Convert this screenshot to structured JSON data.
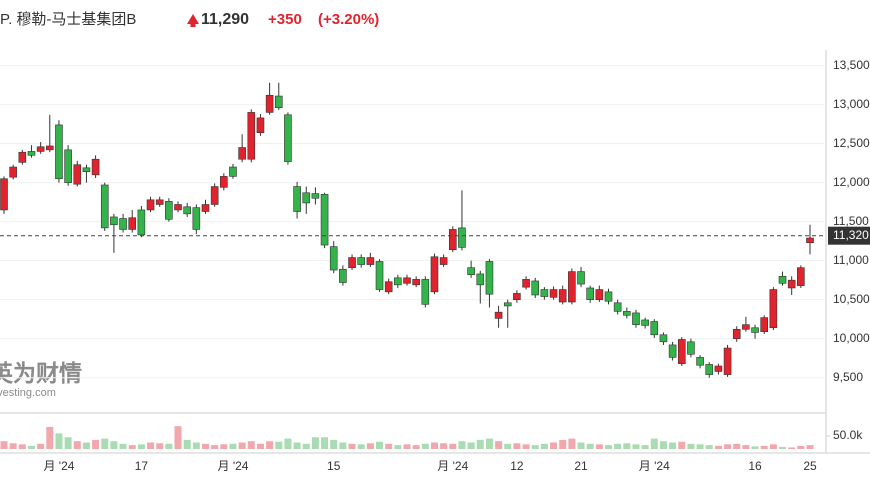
{
  "chart_data": {
    "type": "candlestick",
    "title": "P. 穆勒-马士基集团B",
    "price": "11,290",
    "change": "+350",
    "change_pct": "(+3.20%)",
    "watermark": "英为财情",
    "watermark_sub": "Investing.com",
    "up_color": "#e0242e",
    "down_color": "#33b34a",
    "up_volume_color": "#f2a7ad",
    "down_volume_color": "#a9dcb2",
    "current_price": {
      "value": 11320,
      "label": "11,320"
    },
    "categories": [
      null,
      null,
      null,
      null,
      null,
      null,
      "月 '24",
      null,
      null,
      null,
      null,
      null,
      null,
      null,
      null,
      "17",
      null,
      null,
      null,
      null,
      null,
      null,
      null,
      null,
      null,
      "月 '24",
      null,
      null,
      null,
      null,
      null,
      null,
      null,
      null,
      null,
      null,
      "15",
      null,
      null,
      null,
      null,
      null,
      null,
      null,
      null,
      null,
      null,
      null,
      null,
      "月 '24",
      null,
      null,
      null,
      null,
      null,
      null,
      "12",
      null,
      null,
      null,
      null,
      null,
      null,
      "21",
      null,
      null,
      null,
      null,
      null,
      null,
      null,
      "月 '24",
      null,
      null,
      null,
      null,
      null,
      null,
      null,
      null,
      null,
      null,
      "16",
      null,
      null,
      null,
      null,
      null,
      "25"
    ],
    "open": [
      11650,
      12070,
      12260,
      12400,
      12400,
      12420,
      12740,
      12420,
      11980,
      12190,
      12100,
      11970,
      11560,
      11540,
      11400,
      11650,
      11650,
      11720,
      11760,
      11650,
      11690,
      11680,
      11630,
      11720,
      11940,
      12200,
      12300,
      12300,
      12640,
      12900,
      13110,
      12870,
      11950,
      11870,
      11860,
      11850,
      11180,
      10890,
      10910,
      11040,
      10950,
      10990,
      10600,
      10780,
      10710,
      10690,
      10760,
      10600,
      10950,
      11140,
      11420,
      10910,
      10830,
      10990,
      10260,
      10460,
      10500,
      10660,
      10740,
      10630,
      10530,
      10470,
      10470,
      10860,
      10650,
      10500,
      10600,
      10460,
      10350,
      10330,
      10240,
      10220,
      10050,
      9920,
      9680,
      9960,
      9760,
      9670,
      9580,
      9540,
      10000,
      10120,
      10140,
      10090,
      10140,
      10800,
      10650,
      10680,
      11230
    ],
    "high": [
      12080,
      12230,
      12420,
      12480,
      12520,
      12870,
      12800,
      12480,
      12280,
      12230,
      12350,
      12000,
      11600,
      11600,
      11650,
      11700,
      11820,
      11820,
      11800,
      11760,
      11740,
      11720,
      11780,
      11990,
      12120,
      12240,
      12620,
      12940,
      12880,
      13280,
      13280,
      12900,
      12010,
      11950,
      11940,
      11870,
      11250,
      10940,
      11080,
      11080,
      11100,
      11020,
      10770,
      10820,
      10820,
      10800,
      10800,
      11090,
      11080,
      11440,
      11900,
      11000,
      10870,
      11020,
      10420,
      10500,
      10620,
      10800,
      10780,
      10660,
      10670,
      10680,
      10900,
      10920,
      10680,
      10680,
      10640,
      10500,
      10400,
      10370,
      10270,
      10250,
      10080,
      9960,
      10020,
      10000,
      9790,
      9700,
      9680,
      9920,
      10160,
      10280,
      10180,
      10300,
      10660,
      10860,
      10800,
      10940,
      11460
    ],
    "low": [
      11600,
      12040,
      12230,
      12320,
      12370,
      12390,
      12000,
      11960,
      11950,
      12000,
      12060,
      11380,
      11100,
      11360,
      11360,
      11300,
      11620,
      11690,
      11500,
      11620,
      11560,
      11340,
      11600,
      11690,
      11900,
      12050,
      12260,
      12260,
      12600,
      12870,
      12930,
      12230,
      11540,
      11600,
      11720,
      11160,
      10840,
      10680,
      10880,
      10910,
      10920,
      10600,
      10570,
      10650,
      10680,
      10660,
      10400,
      10570,
      10920,
      11110,
      11130,
      10780,
      10450,
      10400,
      10140,
      10140,
      10460,
      10630,
      10520,
      10500,
      10500,
      10440,
      10440,
      10660,
      10460,
      10470,
      10440,
      10310,
      10260,
      10140,
      10130,
      10010,
      9920,
      9720,
      9650,
      9760,
      9620,
      9500,
      9540,
      9510,
      9960,
      10090,
      10000,
      10060,
      10110,
      10680,
      10560,
      10650,
      11080
    ],
    "close": [
      12050,
      12200,
      12390,
      12350,
      12460,
      12470,
      12050,
      12000,
      12230,
      12140,
      12300,
      11420,
      11460,
      11400,
      11550,
      11330,
      11780,
      11780,
      11530,
      11720,
      11600,
      11400,
      11720,
      11950,
      12080,
      12080,
      12450,
      12900,
      12830,
      13120,
      12960,
      12270,
      11630,
      11740,
      11800,
      11200,
      10880,
      10720,
      11040,
      10950,
      11040,
      10630,
      10730,
      10690,
      10780,
      10760,
      10440,
      11050,
      11040,
      11400,
      11170,
      10820,
      10690,
      10570,
      10340,
      10420,
      10580,
      10760,
      10560,
      10540,
      10630,
      10630,
      10860,
      10700,
      10500,
      10630,
      10480,
      10350,
      10300,
      10180,
      10170,
      10050,
      9960,
      9760,
      9990,
      9800,
      9660,
      9540,
      9650,
      9880,
      10120,
      10180,
      10080,
      10270,
      10630,
      10710,
      10750,
      10910,
      11290
    ],
    "volume": [
      30000,
      22000,
      18000,
      12000,
      20000,
      85000,
      60000,
      45000,
      30000,
      25000,
      35000,
      40000,
      30000,
      20000,
      15000,
      18000,
      25000,
      22000,
      20000,
      88000,
      35000,
      25000,
      20000,
      15000,
      18000,
      20000,
      25000,
      30000,
      20000,
      30000,
      28000,
      40000,
      25000,
      20000,
      45000,
      45000,
      35000,
      25000,
      20000,
      18000,
      22000,
      28000,
      20000,
      15000,
      18000,
      15000,
      20000,
      25000,
      22000,
      20000,
      30000,
      25000,
      35000,
      40000,
      30000,
      20000,
      22000,
      18000,
      15000,
      20000,
      25000,
      35000,
      40000,
      25000,
      20000,
      18000,
      15000,
      20000,
      22000,
      18000,
      15000,
      40000,
      30000,
      25000,
      28000,
      20000,
      18000,
      15000,
      12000,
      18000,
      20000,
      15000,
      10000,
      12000,
      18000,
      8000,
      6000,
      12000,
      15000
    ],
    "ylim": [
      9150,
      13700
    ],
    "yticks": [
      {
        "value": 9500,
        "label": "9,500"
      },
      {
        "value": 10000,
        "label": "10,000"
      },
      {
        "value": 10500,
        "label": "10,500"
      },
      {
        "value": 11000,
        "label": "11,000"
      },
      {
        "value": 11500,
        "label": "11,500"
      },
      {
        "value": 12000,
        "label": "12,000"
      },
      {
        "value": 12500,
        "label": "12,500"
      },
      {
        "value": 13000,
        "label": "13,000"
      },
      {
        "value": 13500,
        "label": "13,500"
      }
    ],
    "y2lim": [
      0,
      100000
    ],
    "y2ticks": [
      {
        "value": 50000,
        "label": "50.0k"
      }
    ],
    "grid": true
  }
}
